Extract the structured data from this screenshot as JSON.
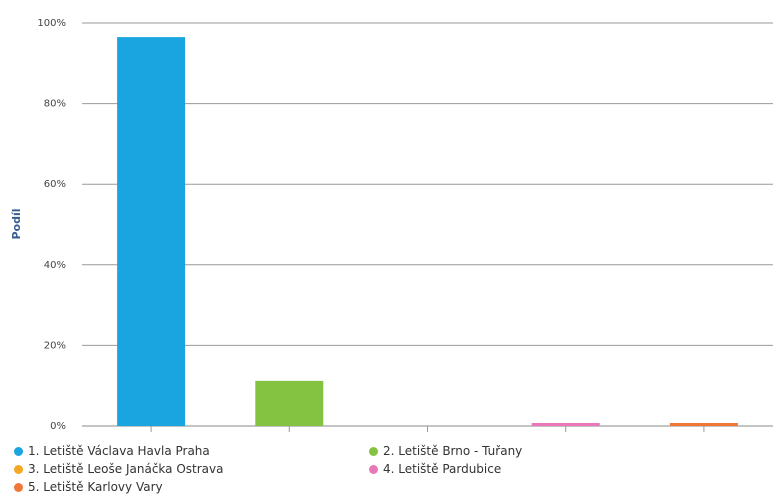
{
  "chart_data": {
    "type": "bar",
    "categories": [
      "1. Letiště Václava Havla Praha",
      "2. Letiště Brno - Tuřany",
      "3. Letiště Leoše Janáčka Ostrava",
      "4. Letiště Pardubice",
      "5. Letiště Karlovy Vary"
    ],
    "values": [
      96.5,
      11.2,
      0,
      0.7,
      0.7
    ],
    "colors": [
      "#1ba5e0",
      "#84c341",
      "#f5a623",
      "#e978b8",
      "#f0763a"
    ],
    "ylabel": "Podíl",
    "ylim": [
      0,
      100
    ],
    "yticks": [
      0,
      20,
      40,
      60,
      80,
      100
    ],
    "ytick_labels": [
      "0%",
      "20%",
      "40%",
      "60%",
      "80%",
      "100%"
    ],
    "grid": true,
    "legend_position": "bottom"
  }
}
